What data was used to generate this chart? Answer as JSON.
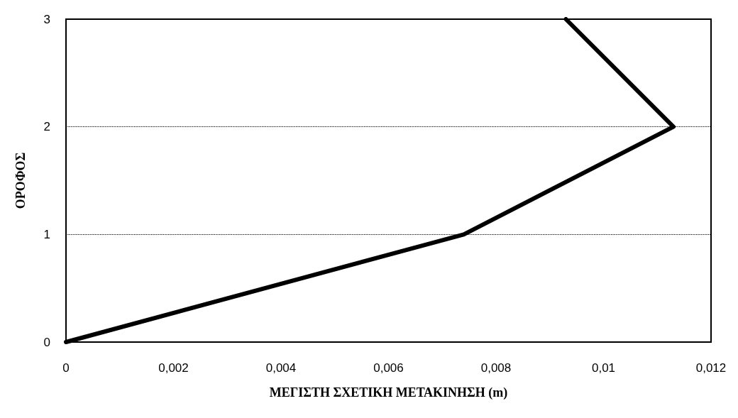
{
  "chart_data": {
    "type": "line",
    "xlabel": "ΜΕΓΙΣΤΗ ΣΧΕΤΙΚΗ ΜΕΤΑΚΙΝΗΣΗ (m)",
    "ylabel": "ΟΡΟΦΟΣ",
    "x": [
      0,
      0.0074,
      0.0113,
      0.0093
    ],
    "series": [
      {
        "color": "#000000",
        "values": [
          0,
          1,
          2,
          3
        ]
      }
    ],
    "xlim": [
      0,
      0.012
    ],
    "xticks": [
      0,
      {
        "value": 0.002,
        "label": "0,002"
      },
      {
        "value": 0.004,
        "label": "0,004"
      },
      {
        "value": 0.006,
        "label": "0,006"
      },
      {
        "value": 0.008,
        "label": "0,008"
      },
      {
        "value": 0.01,
        "label": "0,01"
      },
      {
        "value": 0.012,
        "label": "0,012"
      }
    ],
    "ylim": [
      0,
      3
    ],
    "yticks": [
      0,
      1,
      2,
      3
    ],
    "grid": "y",
    "marker": "none",
    "line_style": "solid"
  }
}
